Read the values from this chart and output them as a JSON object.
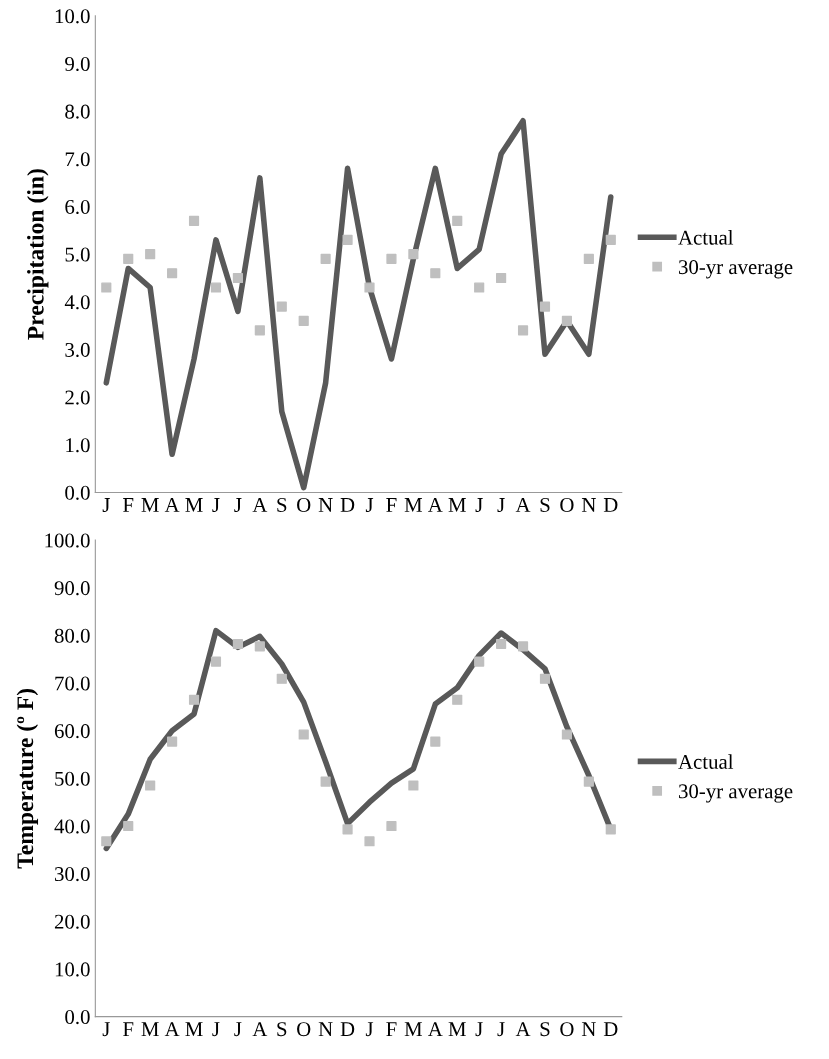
{
  "chart_data": [
    {
      "type": "line",
      "ylabel": "Precipitation (in)",
      "categories": [
        "J",
        "F",
        "M",
        "A",
        "M",
        "J",
        "J",
        "A",
        "S",
        "O",
        "N",
        "D",
        "J",
        "F",
        "M",
        "A",
        "M",
        "J",
        "J",
        "A",
        "S",
        "O",
        "N",
        "D"
      ],
      "ylim": [
        0,
        10
      ],
      "yticks": [
        {
          "value": 0,
          "label": "0.0"
        },
        {
          "value": 1,
          "label": "1.0"
        },
        {
          "value": 2,
          "label": "2.0"
        },
        {
          "value": 3,
          "label": "3.0"
        },
        {
          "value": 4,
          "label": "4.0"
        },
        {
          "value": 5,
          "label": "5.0"
        },
        {
          "value": 6,
          "label": "6.0"
        },
        {
          "value": 7,
          "label": "7.0"
        },
        {
          "value": 8,
          "label": "8.0"
        },
        {
          "value": 9,
          "label": "9.0"
        },
        {
          "value": 10,
          "label": "10.0"
        }
      ],
      "legend": "right",
      "grid": false,
      "series": [
        {
          "name": "Actual",
          "color": "#595959",
          "marker": "none",
          "values": [
            2.3,
            4.7,
            4.3,
            0.8,
            2.8,
            5.3,
            3.8,
            6.6,
            1.7,
            0.1,
            2.3,
            6.8,
            4.3,
            2.8,
            4.9,
            6.8,
            4.7,
            5.1,
            7.1,
            7.8,
            2.9,
            3.6,
            2.9,
            6.2
          ]
        },
        {
          "name": "30-yr average",
          "type": "scatter",
          "color": "#bfbfbf",
          "marker": "square",
          "values": [
            4.3,
            4.9,
            5.0,
            4.6,
            5.7,
            4.3,
            4.5,
            3.4,
            3.9,
            3.6,
            4.9,
            5.3,
            4.3,
            4.9,
            5.0,
            4.6,
            5.7,
            4.3,
            4.5,
            3.4,
            3.9,
            3.6,
            4.9,
            5.3
          ]
        }
      ]
    },
    {
      "type": "line",
      "ylabel": "Temperature (º F)",
      "categories": [
        "J",
        "F",
        "M",
        "A",
        "M",
        "J",
        "J",
        "A",
        "S",
        "O",
        "N",
        "D",
        "J",
        "F",
        "M",
        "A",
        "M",
        "J",
        "J",
        "A",
        "S",
        "O",
        "N",
        "D"
      ],
      "ylim": [
        0,
        100
      ],
      "yticks": [
        {
          "value": 0,
          "label": "0.0"
        },
        {
          "value": 10,
          "label": "10.0"
        },
        {
          "value": 20,
          "label": "20.0"
        },
        {
          "value": 30,
          "label": "30.0"
        },
        {
          "value": 40,
          "label": "40.0"
        },
        {
          "value": 50,
          "label": "50.0"
        },
        {
          "value": 60,
          "label": "60.0"
        },
        {
          "value": 70,
          "label": "70.0"
        },
        {
          "value": 80,
          "label": "80.0"
        },
        {
          "value": 90,
          "label": "90.0"
        },
        {
          "value": 100,
          "label": "100.0"
        }
      ],
      "legend": "right",
      "grid": false,
      "series": [
        {
          "name": "Actual",
          "color": "#595959",
          "marker": "none",
          "values": [
            35.3,
            42.5,
            54,
            60,
            63.5,
            81,
            77.5,
            79.8,
            74,
            66,
            53.5,
            40.5,
            45,
            49,
            52,
            65.6,
            69,
            75.8,
            80.5,
            77,
            73,
            60.8,
            50.6,
            39.3
          ]
        },
        {
          "name": "30-yr average",
          "type": "scatter",
          "color": "#bfbfbf",
          "marker": "square",
          "values": [
            36.8,
            40,
            48.5,
            57.7,
            66.5,
            74.5,
            78.2,
            77.7,
            70.9,
            59.2,
            49.3,
            39.3,
            36.8,
            40,
            48.5,
            57.7,
            66.5,
            74.5,
            78.2,
            77.7,
            70.9,
            59.2,
            49.3,
            39.3
          ]
        }
      ]
    }
  ]
}
